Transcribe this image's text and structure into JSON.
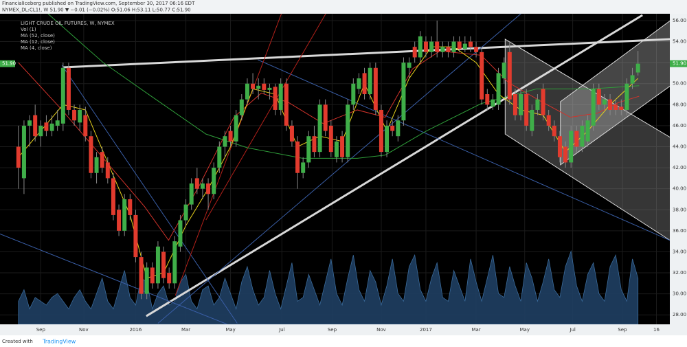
{
  "header": {
    "publisher": "FinancialIceberg published on TradingView.com, September 30, 2017 06:16 EDT",
    "quote": "NYMEX_DL:CL1!, W 51.90 ▼ −0.01 (−0.02%) O:51.06 H:53.11 L:50.77 C:51.90"
  },
  "footer": {
    "created": "Created with",
    "brand": "TradingView"
  },
  "chart_data": {
    "type": "candlestick",
    "legend": [
      "LIGHT CRUDE OIL FUTURES, W, NYMEX",
      "Vol (1)",
      "MA (52, close)",
      "MA (12, close)",
      "MA (4, close)"
    ],
    "up_color": "#3fae49",
    "down_color": "#e23b2e",
    "last_price": {
      "value": 51.9,
      "label": "51.90",
      "color": "#3fae49"
    },
    "ylim": [
      27.1,
      56.65
    ],
    "yticks": [
      {
        "value": 28,
        "label": "28.00"
      },
      {
        "value": 30,
        "label": "30.00"
      },
      {
        "value": 32,
        "label": "32.00"
      },
      {
        "value": 34,
        "label": "34.00"
      },
      {
        "value": 36,
        "label": "36.00"
      },
      {
        "value": 38,
        "label": "38.00"
      },
      {
        "value": 40,
        "label": "40.00"
      },
      {
        "value": 42,
        "label": "42.00"
      },
      {
        "value": 44,
        "label": "44.00"
      },
      {
        "value": 46,
        "label": "46.00"
      },
      {
        "value": 48,
        "label": "48.00"
      },
      {
        "value": 50,
        "label": "50.00"
      },
      {
        "value": 52,
        "label": "52.00"
      },
      {
        "value": 54,
        "label": "54.00"
      },
      {
        "value": 56,
        "label": "56.00"
      }
    ],
    "xlim": [
      -3.3,
      116.7
    ],
    "xticks": [
      {
        "value": 4,
        "label": "Sep"
      },
      {
        "value": 11.7,
        "label": "Nov"
      },
      {
        "value": 21,
        "label": "2016"
      },
      {
        "value": 30,
        "label": "Mar"
      },
      {
        "value": 38,
        "label": "May"
      },
      {
        "value": 47.2,
        "label": "Jul"
      },
      {
        "value": 56.2,
        "label": "Sep"
      },
      {
        "value": 65,
        "label": "Nov"
      },
      {
        "value": 73,
        "label": "2017"
      },
      {
        "value": 82,
        "label": "Mar"
      },
      {
        "value": 90.7,
        "label": "May"
      },
      {
        "value": 99.3,
        "label": "Jul"
      },
      {
        "value": 108.2,
        "label": "Sep"
      },
      {
        "value": 114.3,
        "label": "16"
      }
    ],
    "candles": [
      [
        44,
        46,
        40,
        42
      ],
      [
        41,
        46.5,
        39.5,
        46
      ],
      [
        46,
        47,
        44,
        46.5
      ],
      [
        47,
        48,
        44.5,
        45
      ],
      [
        45,
        46.5,
        44,
        46
      ],
      [
        46.3,
        47,
        45,
        45.5
      ],
      [
        45.5,
        47,
        45,
        46.2
      ],
      [
        46,
        47.5,
        45.5,
        46.5
      ],
      [
        46.2,
        52,
        45.5,
        51.5
      ],
      [
        51.5,
        52,
        47,
        47.5
      ],
      [
        47.5,
        48,
        46,
        46.5
      ],
      [
        46.3,
        48,
        45.5,
        47.5
      ],
      [
        47,
        47.8,
        44.5,
        45
      ],
      [
        45,
        45.5,
        41,
        41.5
      ],
      [
        41.5,
        43.5,
        40.5,
        43
      ],
      [
        43.5,
        44,
        41.5,
        42
      ],
      [
        42.5,
        43,
        40.5,
        41
      ],
      [
        41,
        41.5,
        37,
        37.5
      ],
      [
        38,
        38.5,
        35.5,
        36
      ],
      [
        36,
        39.5,
        35.5,
        39
      ],
      [
        39,
        39.5,
        37,
        37.5
      ],
      [
        37.5,
        38,
        33,
        33.5
      ],
      [
        33.5,
        34,
        29.5,
        30
      ],
      [
        30,
        33,
        29.5,
        32.5
      ],
      [
        32.5,
        33,
        30.5,
        31
      ],
      [
        31,
        35,
        30.5,
        34.5
      ],
      [
        34,
        34.5,
        31,
        31.5
      ],
      [
        32,
        32.5,
        30.5,
        31
      ],
      [
        31,
        35.5,
        30.5,
        35
      ],
      [
        34.5,
        37.5,
        34,
        37
      ],
      [
        37,
        39,
        36.5,
        38.5
      ],
      [
        38.5,
        41,
        38,
        40.5
      ],
      [
        41,
        42,
        39.5,
        40
      ],
      [
        40,
        41,
        39,
        40.5
      ],
      [
        40.5,
        41,
        38,
        39.5
      ],
      [
        39.5,
        42.5,
        39,
        42
      ],
      [
        42,
        44.5,
        41.5,
        44
      ],
      [
        44,
        45.5,
        43,
        45
      ],
      [
        45.5,
        46,
        44,
        44.5
      ],
      [
        44.5,
        47.5,
        44,
        47
      ],
      [
        47,
        49,
        46.5,
        48.5
      ],
      [
        48.5,
        50.5,
        48,
        50
      ],
      [
        50,
        51,
        49,
        49.5
      ],
      [
        49.5,
        50.5,
        48.5,
        49.8
      ],
      [
        50,
        50.5,
        49,
        49.4
      ],
      [
        49.4,
        50,
        48.5,
        49.6
      ],
      [
        49.7,
        50,
        47,
        47.5
      ],
      [
        47.5,
        50.5,
        47,
        50
      ],
      [
        50,
        50.5,
        45.5,
        46
      ],
      [
        46,
        46.5,
        44,
        44.5
      ],
      [
        44.5,
        45,
        40,
        41.5
      ],
      [
        41.5,
        43,
        41,
        42.5
      ],
      [
        42.5,
        45.5,
        42,
        45
      ],
      [
        45,
        46,
        43,
        43.5
      ],
      [
        43.5,
        48.5,
        43,
        48
      ],
      [
        48,
        48.5,
        45,
        45.5
      ],
      [
        46,
        46.5,
        43,
        43.5
      ],
      [
        43,
        45,
        42.5,
        44.5
      ],
      [
        45,
        45.5,
        42.5,
        43
      ],
      [
        43,
        48.5,
        42.5,
        48
      ],
      [
        48,
        50.5,
        47.5,
        50
      ],
      [
        49.5,
        51,
        49,
        50.5
      ],
      [
        51,
        51.5,
        48.5,
        49
      ],
      [
        49,
        52,
        48.5,
        51.5
      ],
      [
        51.5,
        52,
        47,
        47.5
      ],
      [
        47.5,
        48,
        43,
        43.5
      ],
      [
        43.5,
        46.5,
        43,
        46
      ],
      [
        46,
        46.5,
        45,
        45.5
      ],
      [
        45,
        47,
        44.5,
        46.5
      ],
      [
        46.5,
        52.5,
        46,
        52
      ],
      [
        51.5,
        52.5,
        50.5,
        52
      ],
      [
        53.5,
        54,
        52,
        52.5
      ],
      [
        52.5,
        55,
        52,
        54.5
      ],
      [
        54,
        54.5,
        52.5,
        53
      ],
      [
        53,
        54.5,
        52.5,
        54
      ],
      [
        54,
        56,
        52.5,
        53
      ],
      [
        53,
        54,
        52.5,
        53.5
      ],
      [
        53.5,
        54,
        52.5,
        53
      ],
      [
        53,
        54.5,
        52.5,
        54
      ],
      [
        54,
        54.5,
        53,
        53.3
      ],
      [
        53.3,
        54.5,
        53,
        53.8
      ],
      [
        54,
        54.5,
        53,
        53.5
      ],
      [
        53.5,
        54,
        52.5,
        53
      ],
      [
        53,
        53.5,
        48,
        48.5
      ],
      [
        49,
        49.5,
        47.5,
        48
      ],
      [
        47.8,
        49,
        47.5,
        48.5
      ],
      [
        48,
        51.5,
        47.5,
        51
      ],
      [
        50.5,
        52.5,
        50,
        52
      ],
      [
        53,
        54,
        48,
        48.5
      ],
      [
        49,
        49.5,
        46.5,
        47
      ],
      [
        47,
        49.5,
        46.5,
        49
      ],
      [
        49,
        49.5,
        45.5,
        46
      ],
      [
        45.5,
        48,
        45,
        47.5
      ],
      [
        47.5,
        49,
        47,
        48.5
      ],
      [
        49.5,
        50,
        46.5,
        47
      ],
      [
        47,
        47.5,
        45.5,
        46
      ],
      [
        46,
        46.5,
        44.5,
        45
      ],
      [
        45,
        45.5,
        42.5,
        43
      ],
      [
        44,
        44.5,
        42,
        42.5
      ],
      [
        42.5,
        46,
        42,
        45.5
      ],
      [
        45.5,
        46,
        43.5,
        44
      ],
      [
        44,
        46.5,
        43.5,
        46
      ],
      [
        44.5,
        47,
        44,
        46.5
      ],
      [
        46,
        50,
        45.5,
        49.5
      ],
      [
        49.5,
        50,
        47.5,
        48
      ],
      [
        48,
        49,
        47.5,
        48.5
      ],
      [
        48.5,
        49,
        47,
        47.5
      ],
      [
        48,
        48.5,
        47,
        47.5
      ],
      [
        47.8,
        48.5,
        47,
        47.5
      ],
      [
        47.5,
        50.5,
        47,
        50
      ],
      [
        50,
        51.5,
        49.5,
        50.8
      ],
      [
        51.06,
        53.11,
        50.77,
        51.9
      ]
    ],
    "volume": {
      "color": "#1f3f63",
      "ylim": [
        0,
        100
      ],
      "values": [
        30,
        45,
        20,
        35,
        30,
        25,
        35,
        40,
        30,
        20,
        35,
        45,
        30,
        20,
        40,
        60,
        30,
        20,
        45,
        70,
        35,
        25,
        60,
        55,
        20,
        40,
        50,
        25,
        30,
        55,
        65,
        30,
        20,
        45,
        50,
        25,
        35,
        60,
        40,
        20,
        55,
        75,
        45,
        25,
        35,
        70,
        40,
        20,
        50,
        80,
        30,
        35,
        65,
        45,
        25,
        55,
        85,
        40,
        25,
        60,
        90,
        45,
        30,
        70,
        55,
        25,
        50,
        85,
        40,
        30,
        75,
        90,
        45,
        30,
        60,
        80,
        35,
        30,
        70,
        50,
        30,
        85,
        55,
        30,
        60,
        90,
        40,
        35,
        75,
        50,
        30,
        80,
        60,
        30,
        55,
        85,
        45,
        35,
        75,
        95,
        50,
        30,
        65,
        80,
        40,
        30,
        75,
        90,
        45,
        30,
        85,
        60
      ]
    },
    "moving_averages": [
      {
        "color": "#2f9e3a",
        "x": [
          5.3,
          15.2,
          23.8,
          33.6,
          41,
          50.9,
          60.7,
          65.7,
          73.1,
          82.9,
          92.8,
          102.6,
          111.2
        ],
        "values": [
          56.65,
          52,
          48.8,
          45.2,
          43.9,
          42.9,
          42.9,
          43.2,
          45.5,
          48.1,
          49.5,
          49.5,
          49.8
        ]
      },
      {
        "color": "#d2332b",
        "x": [
          0,
          7.8,
          15.2,
          22.6,
          26.9,
          32.4,
          38.6,
          43.5,
          48.4,
          54.6,
          60.7,
          65.7,
          70.6,
          75.5,
          82.9,
          87.8,
          94,
          98.9,
          103.8,
          107.5,
          111.2
        ],
        "values": [
          52,
          47.5,
          42.9,
          38.3,
          35.1,
          40.3,
          46.8,
          49.1,
          48.2,
          46.2,
          47.5,
          46.8,
          51.4,
          53.1,
          52.7,
          50.1,
          48.2,
          46.8,
          47.2,
          48.2,
          48.8
        ]
      },
      {
        "color": "#e8d21c",
        "x": [
          0,
          4,
          8,
          12,
          16,
          20,
          23,
          26,
          30,
          34,
          38,
          42,
          46,
          50,
          54,
          58,
          62,
          66,
          70,
          74,
          78,
          82,
          86,
          90,
          94,
          98,
          102,
          106,
          111
        ],
        "values": [
          43,
          45.5,
          48,
          47.5,
          42.5,
          37.5,
          31.5,
          32,
          36.5,
          40,
          44,
          49.5,
          49,
          44,
          45,
          44.5,
          50,
          45.5,
          50.5,
          53.5,
          53.5,
          52,
          49,
          47.5,
          47,
          43.5,
          45.5,
          48,
          50.5
        ]
      }
    ],
    "trendlines": [
      {
        "color": "#d8d8d8",
        "width": 3,
        "points": [
          [
            8,
            51.55
          ],
          [
            116.8,
            54.23
          ]
        ]
      },
      {
        "color": "#d8d8d8",
        "width": 3,
        "points": [
          [
            22.9,
            27.88
          ],
          [
            111.8,
            56.52
          ]
        ]
      },
      {
        "color": "#3a5fa8",
        "width": 1,
        "points": [
          [
            7.8,
            51.75
          ],
          [
            39.2,
            27.2
          ]
        ]
      },
      {
        "color": "#3a5fa8",
        "width": 1,
        "points": [
          [
            -3.3,
            35.7
          ],
          [
            39.8,
            26.6
          ]
        ]
      },
      {
        "color": "#3a5fa8",
        "width": 1,
        "points": [
          [
            42.9,
            52.27
          ],
          [
            116.8,
            35.07
          ]
        ]
      },
      {
        "color": "#3a5fa8",
        "width": 1,
        "points": [
          [
            25,
            27.2
          ],
          [
            90.3,
            56.78
          ]
        ]
      },
      {
        "color": "#b3201a",
        "width": 1,
        "points": [
          [
            28.1,
            29.84
          ],
          [
            47.2,
            56.78
          ]
        ]
      },
      {
        "color": "#b3201a",
        "width": 1,
        "points": [
          [
            33.6,
            37.03
          ],
          [
            55.2,
            56.78
          ]
        ]
      }
    ],
    "channels": [
      {
        "color": "#9a9a9a",
        "points": [
          [
            87.2,
            54.23
          ],
          [
            116.8,
            44.88
          ],
          [
            116.8,
            35.07
          ],
          [
            87.2,
            45.2
          ]
        ]
      },
      {
        "color": "#c8c8c8",
        "points": [
          [
            97.1,
            48.28
          ],
          [
            116.8,
            56
          ],
          [
            116.8,
            49.79
          ],
          [
            97.1,
            42.27
          ]
        ]
      }
    ]
  }
}
